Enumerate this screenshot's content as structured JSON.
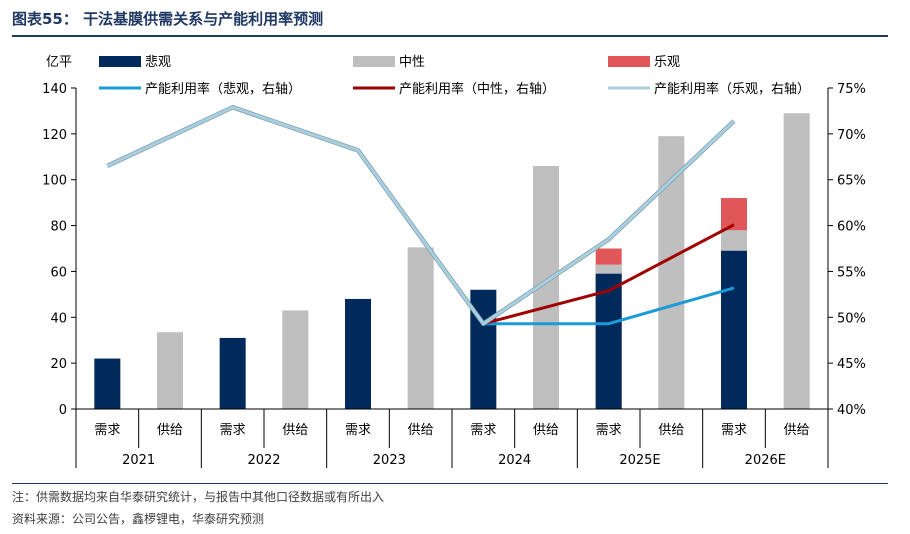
{
  "figure": {
    "title": "图表55：  干法基膜供需关系与产能利用率预测",
    "note": "注：供需数据均来自华泰研究统计，与报告中其他口径数据或有所出入",
    "source": "资料来源：公司公告，鑫椤锂电，华泰研究预测"
  },
  "chart_data": {
    "type": "bar",
    "left_axis_unit": "亿平",
    "left_ylim": [
      0,
      140
    ],
    "left_ticks": [
      "0",
      "20",
      "40",
      "60",
      "80",
      "100",
      "120",
      "140"
    ],
    "right_ylim": [
      40,
      75
    ],
    "right_ticks": [
      "40%",
      "45%",
      "50%",
      "55%",
      "60%",
      "65%",
      "70%",
      "75%"
    ],
    "years": [
      "2021",
      "2022",
      "2023",
      "2024",
      "2025E",
      "2026E"
    ],
    "sub_categories": [
      "需求",
      "供给"
    ],
    "bar_series": [
      {
        "name": "悲观",
        "color": "#002a5c",
        "demand": [
          22,
          31,
          48,
          52,
          59,
          69
        ],
        "supply": [
          null,
          null,
          null,
          null,
          null,
          null
        ]
      },
      {
        "name": "中性",
        "color": "#bfbfbf",
        "demand": [
          null,
          null,
          null,
          null,
          63,
          78
        ],
        "supply": [
          33.5,
          43,
          70.5,
          106,
          119,
          129
        ]
      },
      {
        "name": "乐观",
        "color": "#e15759",
        "demand": [
          null,
          null,
          null,
          null,
          70,
          92
        ],
        "supply": [
          null,
          null,
          null,
          null,
          null,
          null
        ]
      }
    ],
    "line_series": [
      {
        "name": "产能利用率（悲观，右轴）",
        "color": "#1a9bd7",
        "values": [
          null,
          null,
          null,
          49.3,
          49.3,
          53.2
        ]
      },
      {
        "name": "产能利用率（中性，右轴）",
        "color": "#a00000",
        "values": [
          null,
          null,
          null,
          49.3,
          52.9,
          60.1
        ]
      },
      {
        "name": "产能利用率（乐观，右轴）",
        "color": "#a9cfdf",
        "values": [
          66.5,
          72.9,
          68.2,
          49.3,
          58.5,
          71.4
        ]
      }
    ],
    "legend_placement": "top",
    "grid": false
  }
}
